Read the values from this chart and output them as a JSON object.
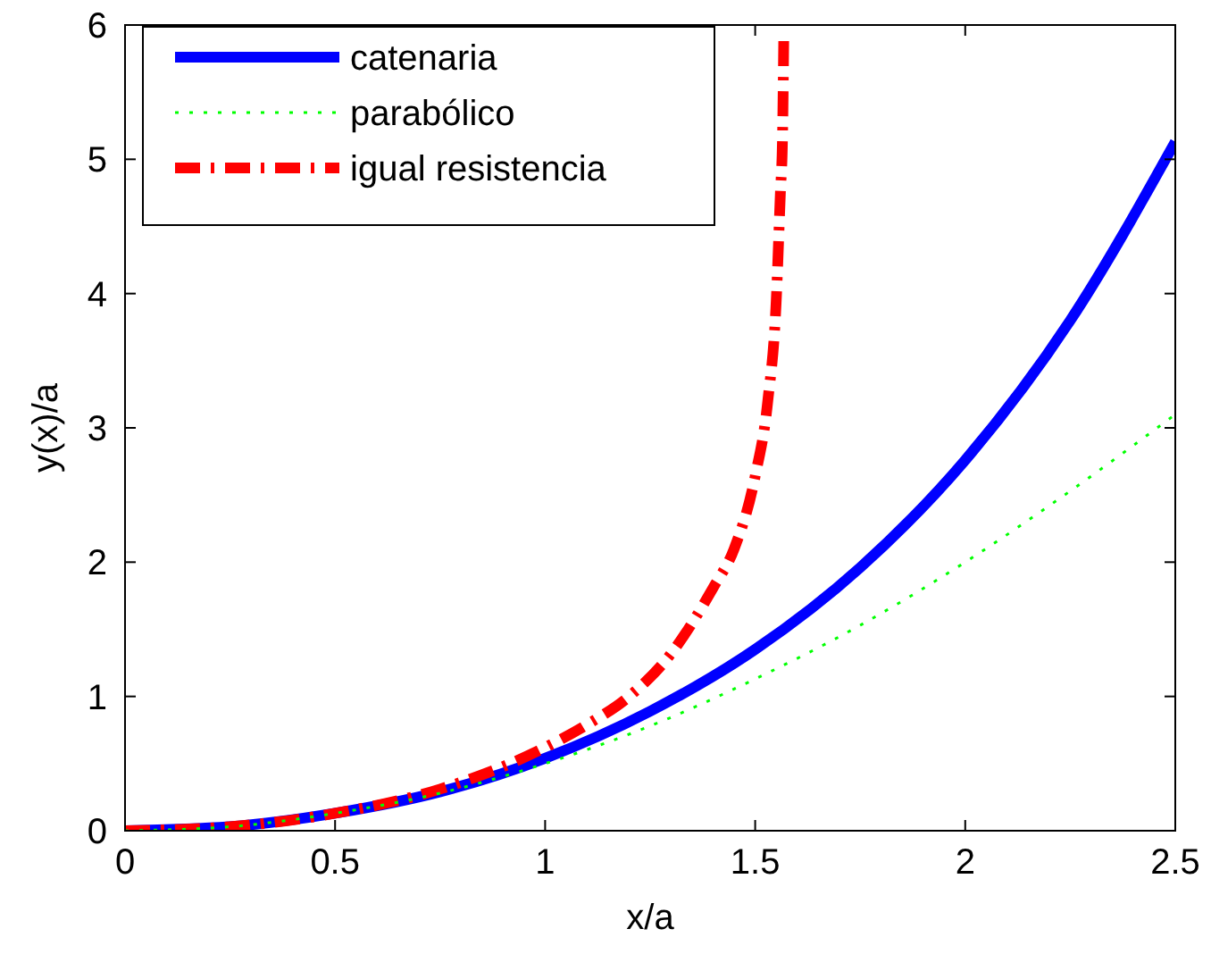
{
  "chart_data": {
    "type": "line",
    "xlabel": "x/a",
    "ylabel": "y(x)/a",
    "xlim": [
      0,
      2.5
    ],
    "ylim": [
      0,
      6
    ],
    "xticks": [
      0,
      {
        "value": 0.5,
        "label": "0.5"
      },
      1,
      {
        "value": 1.5,
        "label": "1.5"
      },
      2,
      {
        "value": 2.5,
        "label": "2.5"
      }
    ],
    "yticks": [
      0,
      1,
      2,
      3,
      4,
      5,
      6
    ],
    "grid": false,
    "legend": "top left",
    "series": [
      {
        "name": "catenaria",
        "color": "#0000ff",
        "line_style": "solid",
        "x": [
          0,
          0.25,
          0.5,
          0.75,
          1,
          1.25,
          1.5,
          1.75,
          2,
          2.25,
          2.5
        ],
        "values": [
          0,
          0.03,
          0.13,
          0.29,
          0.54,
          0.89,
          1.35,
          1.96,
          2.76,
          3.8,
          5.13
        ]
      },
      {
        "name": "parabólico",
        "color": "#00ff00",
        "line_style": "dotted",
        "x": [
          0,
          0.25,
          0.5,
          0.75,
          1,
          1.25,
          1.5,
          1.75,
          2,
          2.25,
          2.5
        ],
        "values": [
          0,
          0.03,
          0.13,
          0.28,
          0.5,
          0.78,
          1.13,
          1.53,
          2,
          2.53,
          3.1
        ]
      },
      {
        "name": "igual resistencia",
        "color": "#ff0000",
        "line_style": "dashed",
        "x": [
          0,
          0.25,
          0.5,
          0.75,
          1,
          1.1,
          1.2,
          1.3,
          1.4,
          1.45,
          1.5,
          1.53,
          1.55,
          1.56,
          1.565,
          1.568
        ],
        "values": [
          0,
          0.03,
          0.13,
          0.31,
          0.62,
          0.79,
          1,
          1.32,
          1.81,
          2.1,
          2.64,
          3.2,
          3.94,
          4.75,
          5.15,
          5.9
        ]
      }
    ]
  }
}
